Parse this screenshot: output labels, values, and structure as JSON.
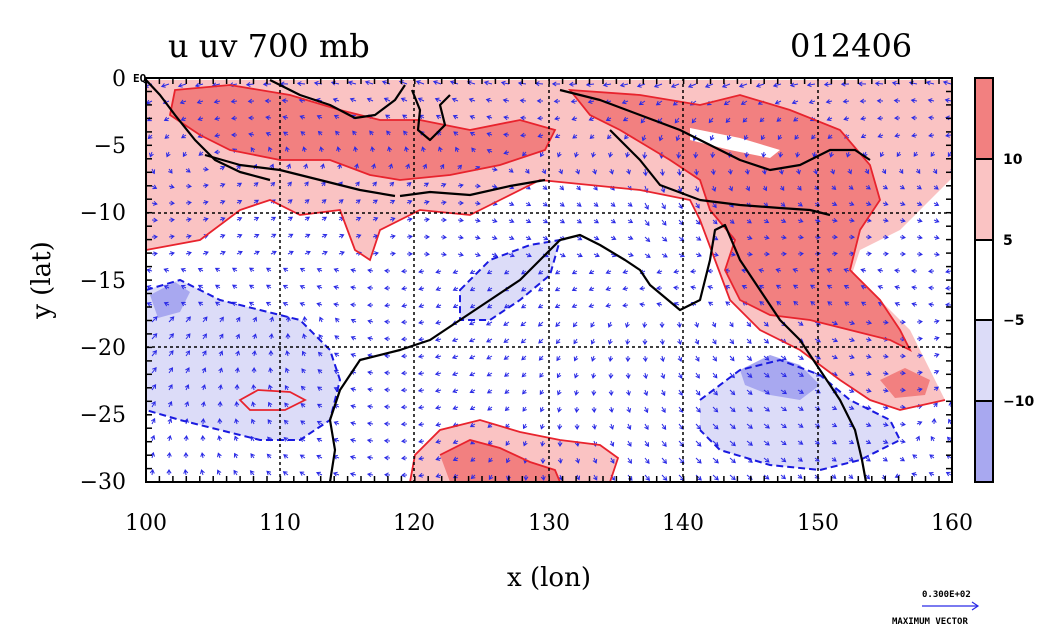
{
  "title_left": "u uv 700 mb",
  "title_right": "012406",
  "corner_label": "EQ",
  "xaxis": {
    "label": "x (lon)",
    "ticks": [
      "100",
      "110",
      "120",
      "130",
      "140",
      "150",
      "160"
    ],
    "range": [
      100,
      160
    ]
  },
  "yaxis": {
    "label": "y (lat)",
    "ticks": [
      "0",
      "−5",
      "−10",
      "−15",
      "−20",
      "−25",
      "−30"
    ],
    "range": [
      -30,
      0
    ]
  },
  "colorbar": {
    "levels": [
      "10",
      "5",
      "−5",
      "−10"
    ],
    "colors": [
      "#f28080",
      "#fac3c3",
      "#ffffff",
      "#dcdcf8",
      "#a8a8f0"
    ]
  },
  "vector_key": {
    "value": "0.300E+02",
    "label": "MAXIMUM VECTOR"
  },
  "colors": {
    "strong_positive": "#f28080",
    "positive": "#fac3c3",
    "negative": "#dcdcf8",
    "strong_negative": "#a8a8f0",
    "vectors": "#2a2ae6",
    "pos_contour": "#e8232d",
    "neg_contour": "#1a1ae0"
  }
}
